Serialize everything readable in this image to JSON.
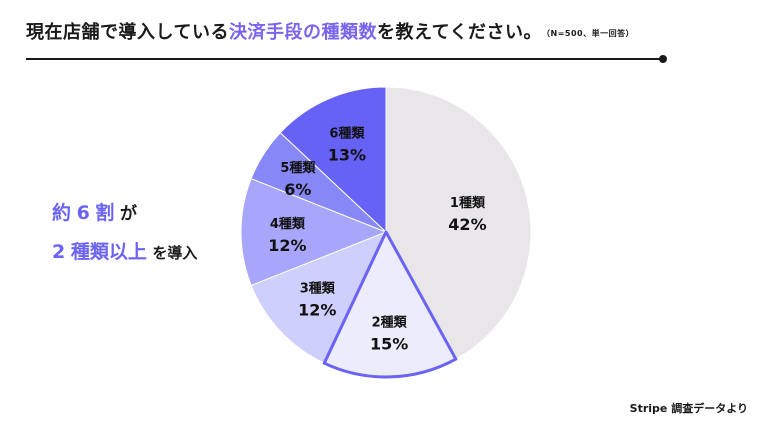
{
  "header": {
    "title_main": "現在店舗で導入している",
    "title_highlight": "決済手段の種類数",
    "title_tail": "を教えてください。",
    "title_note": "（N=500、単一回答）"
  },
  "callout": {
    "line1_a": "約",
    "line1_b": "6",
    "line1_c": "割",
    "line1_d": "が",
    "line2_a": "2",
    "line2_b": "種類以上",
    "line2_c": "を導入"
  },
  "source": "Stripe 調査データより",
  "colors": {
    "accent": "#6b63f5",
    "slice_1": "#e8e6e9",
    "slice_2": "#ececfd",
    "slice_3": "#cfcffc",
    "slice_4": "#a8a6fa",
    "slice_5": "#8887f7",
    "slice_6": "#6562f5",
    "highlight_outline": "#6b63f5"
  },
  "chart_data": {
    "type": "pie",
    "title": "",
    "categories": [
      "1種類",
      "2種類",
      "3種類",
      "4種類",
      "5種類",
      "6種類"
    ],
    "values": [
      42,
      15,
      12,
      12,
      6,
      13
    ],
    "value_labels": [
      "42%",
      "15%",
      "12%",
      "12%",
      "6%",
      "13%"
    ],
    "start": "12 o'clock, clockwise",
    "highlighted": [
      "2種類"
    ]
  }
}
